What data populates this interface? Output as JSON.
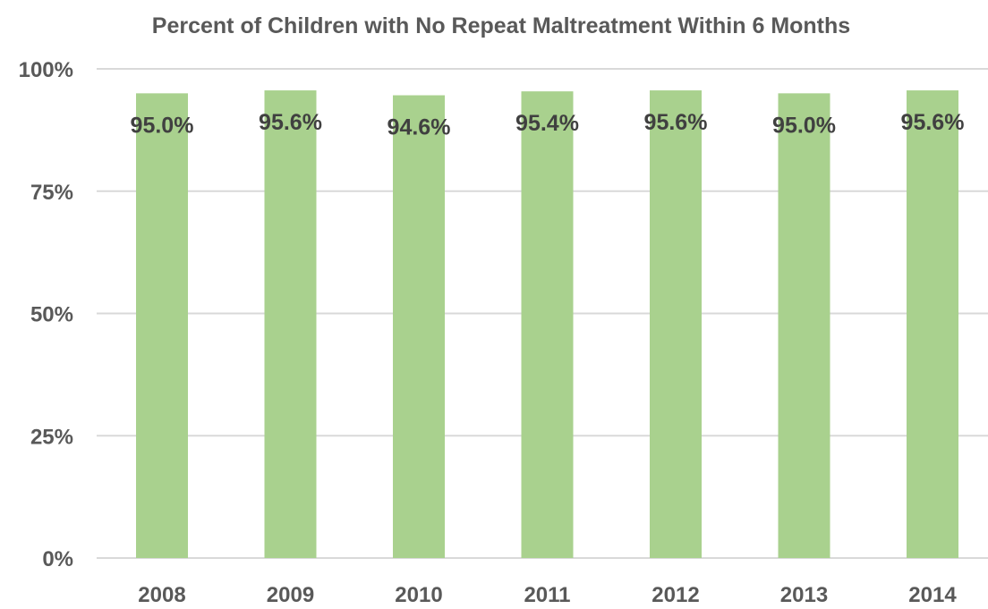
{
  "chart_data": {
    "type": "bar",
    "title": "Percent of Children with No Repeat Maltreatment Within 6 Months",
    "categories": [
      "2008",
      "2009",
      "2010",
      "2011",
      "2012",
      "2013",
      "2014"
    ],
    "values": [
      95.0,
      95.6,
      94.6,
      95.4,
      95.6,
      95.0,
      95.6
    ],
    "data_labels": [
      "95.0%",
      "95.6%",
      "94.6%",
      "95.4%",
      "95.6%",
      "95.0%",
      "95.6%"
    ],
    "xlabel": "",
    "ylabel": "",
    "ylim": [
      0,
      100
    ],
    "yticks": [
      0,
      25,
      50,
      75,
      100
    ],
    "ytick_labels": [
      "0%",
      "25%",
      "50%",
      "75%",
      "100%"
    ],
    "grid": true,
    "legend": "none",
    "colors": {
      "bar": "#a9d18e",
      "grid": "#d9d9d9",
      "text": "#595959",
      "label": "#404040"
    }
  }
}
